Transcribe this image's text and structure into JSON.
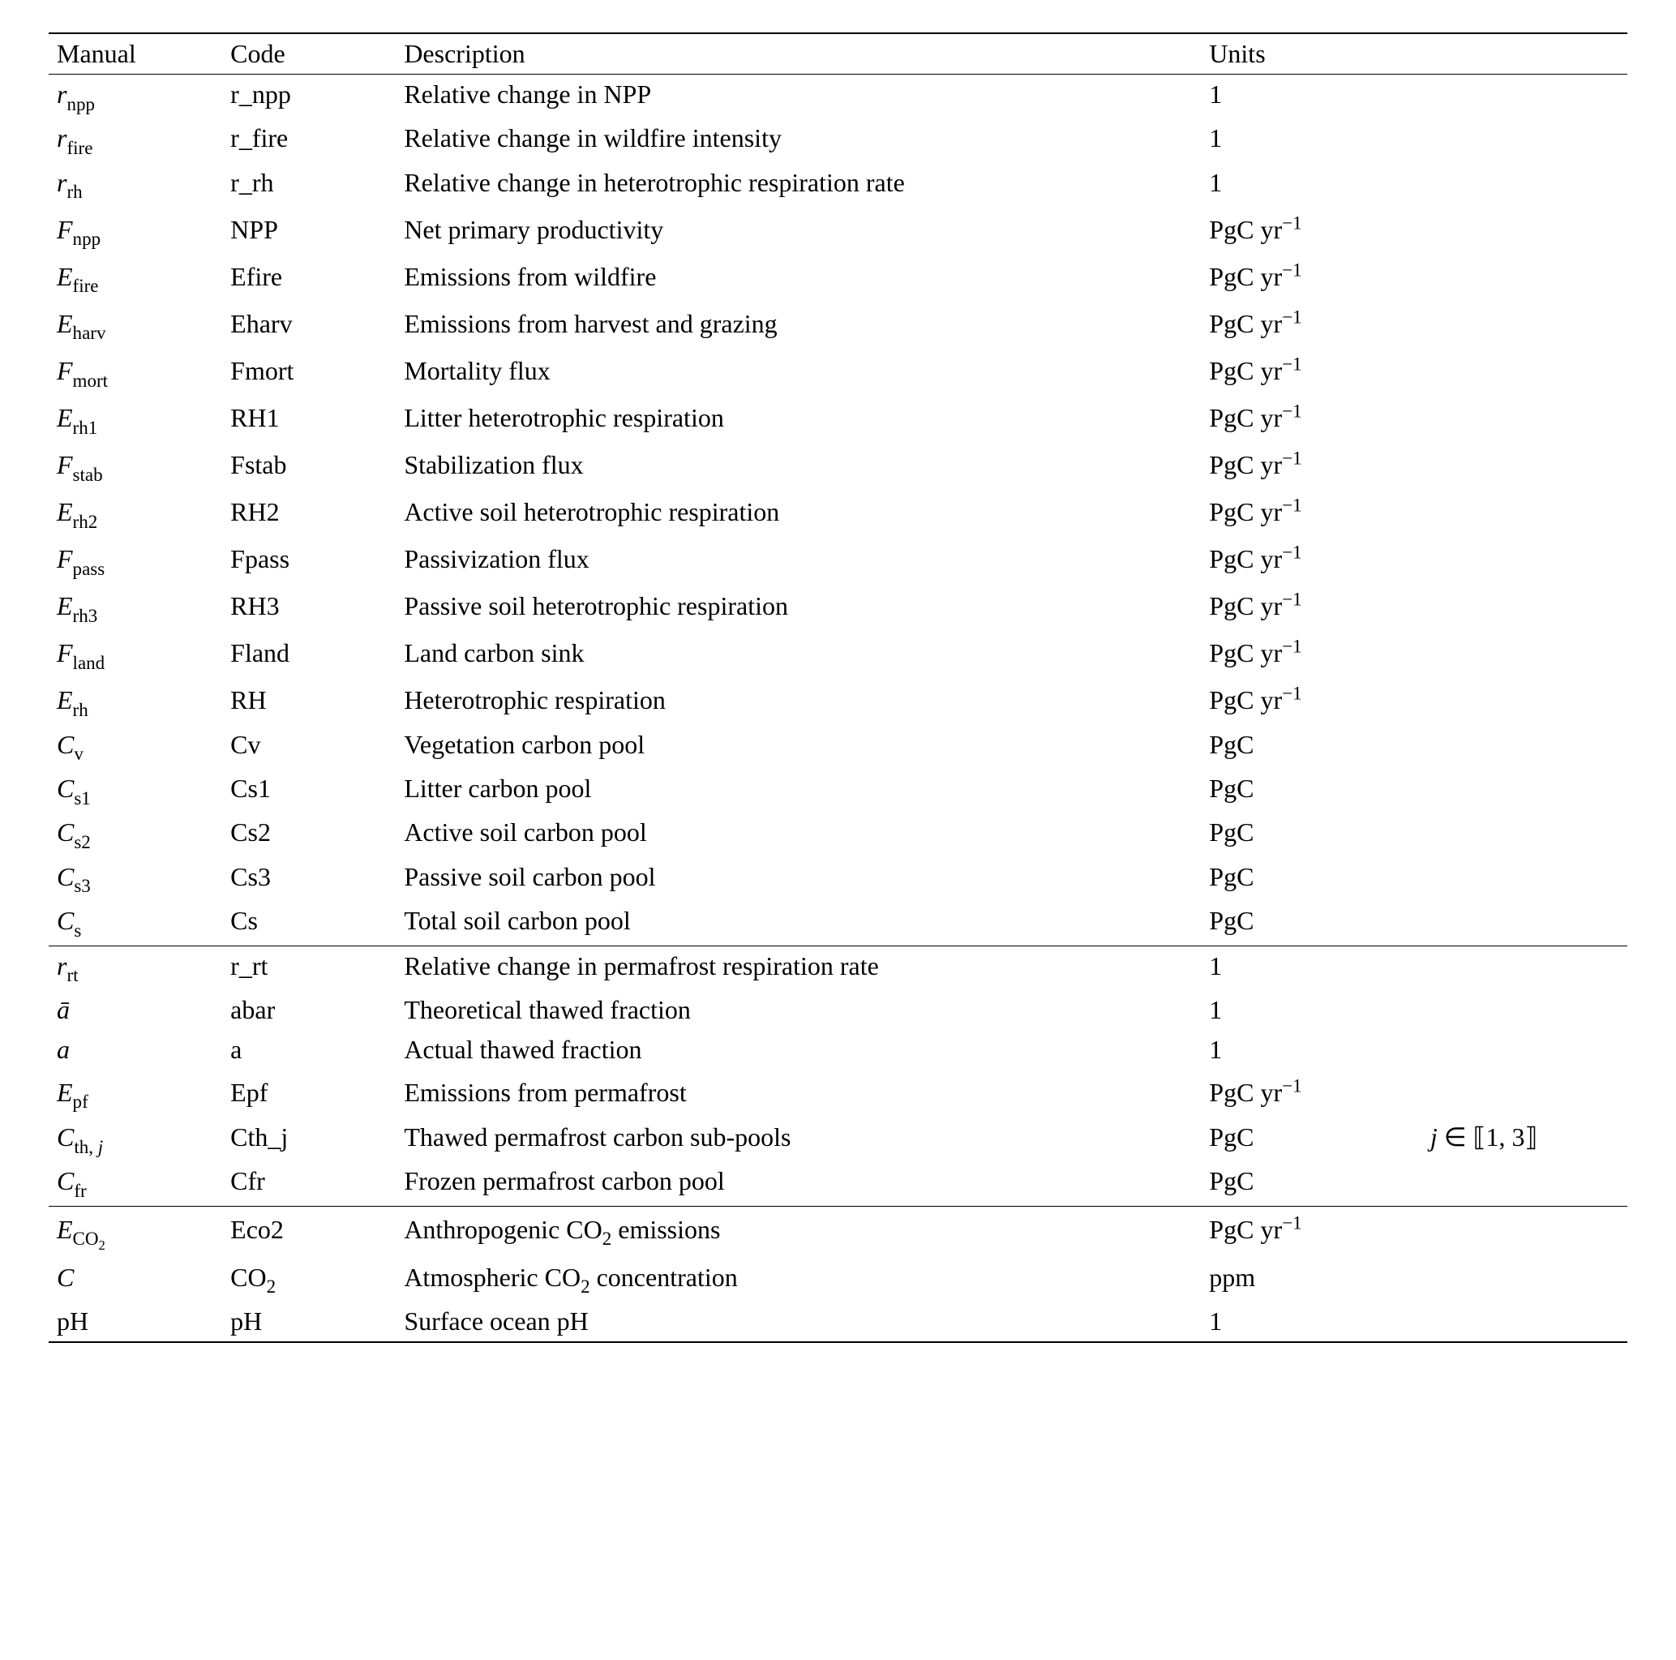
{
  "headers": {
    "manual": "Manual",
    "code": "Code",
    "description": "Description",
    "units": "Units"
  },
  "units_labels": {
    "one": "1",
    "pgc": "PgC",
    "pgcyr": "PgC yr",
    "pgcyr_exp": "−1",
    "ppm": "ppm"
  },
  "extra": {
    "j_range": "j ∈ ⟦1, 3⟧"
  },
  "sections": [
    {
      "rows": [
        {
          "m_base": "r",
          "m_sub": "npp",
          "m_italic": true,
          "code": "r_npp",
          "desc": "Relative change in NPP",
          "unit": "one"
        },
        {
          "m_base": "r",
          "m_sub": "fire",
          "m_italic": true,
          "code": "r_fire",
          "desc": "Relative change in wildfire intensity",
          "unit": "one"
        },
        {
          "m_base": "r",
          "m_sub": "rh",
          "m_italic": true,
          "code": "r_rh",
          "desc": "Relative change in heterotrophic respiration rate",
          "unit": "one"
        },
        {
          "m_base": "F",
          "m_sub": "npp",
          "m_italic": true,
          "code": "NPP",
          "desc": "Net primary productivity",
          "unit": "pgcyr"
        },
        {
          "m_base": "E",
          "m_sub": "fire",
          "m_italic": true,
          "code": "Efire",
          "desc": "Emissions from wildfire",
          "unit": "pgcyr"
        },
        {
          "m_base": "E",
          "m_sub": "harv",
          "m_italic": true,
          "code": "Eharv",
          "desc": "Emissions from harvest and grazing",
          "unit": "pgcyr"
        },
        {
          "m_base": "F",
          "m_sub": "mort",
          "m_italic": true,
          "code": "Fmort",
          "desc": "Mortality flux",
          "unit": "pgcyr"
        },
        {
          "m_base": "E",
          "m_sub": "rh1",
          "m_italic": true,
          "code": "RH1",
          "desc": "Litter heterotrophic respiration",
          "unit": "pgcyr"
        },
        {
          "m_base": "F",
          "m_sub": "stab",
          "m_italic": true,
          "code": "Fstab",
          "desc": "Stabilization flux",
          "unit": "pgcyr"
        },
        {
          "m_base": "E",
          "m_sub": "rh2",
          "m_italic": true,
          "code": "RH2",
          "desc": "Active soil heterotrophic respiration",
          "unit": "pgcyr"
        },
        {
          "m_base": "F",
          "m_sub": "pass",
          "m_italic": true,
          "code": "Fpass",
          "desc": "Passivization flux",
          "unit": "pgcyr"
        },
        {
          "m_base": "E",
          "m_sub": "rh3",
          "m_italic": true,
          "code": "RH3",
          "desc": "Passive soil heterotrophic respiration",
          "unit": "pgcyr"
        },
        {
          "m_base": "F",
          "m_sub": "land",
          "m_italic": true,
          "code": "Fland",
          "desc": "Land carbon sink",
          "unit": "pgcyr"
        },
        {
          "m_base": "E",
          "m_sub": "rh",
          "m_italic": true,
          "code": "RH",
          "desc": "Heterotrophic respiration",
          "unit": "pgcyr"
        },
        {
          "m_base": "C",
          "m_sub": "v",
          "m_italic": true,
          "code": "Cv",
          "desc": "Vegetation carbon pool",
          "unit": "pgc"
        },
        {
          "m_base": "C",
          "m_sub": "s1",
          "m_italic": true,
          "code": "Cs1",
          "desc": "Litter carbon pool",
          "unit": "pgc"
        },
        {
          "m_base": "C",
          "m_sub": "s2",
          "m_italic": true,
          "code": "Cs2",
          "desc": "Active soil carbon pool",
          "unit": "pgc"
        },
        {
          "m_base": "C",
          "m_sub": "s3",
          "m_italic": true,
          "code": "Cs3",
          "desc": "Passive soil carbon pool",
          "unit": "pgc"
        },
        {
          "m_base": "C",
          "m_sub": "s",
          "m_italic": true,
          "code": "Cs",
          "desc": "Total soil carbon pool",
          "unit": "pgc"
        }
      ]
    },
    {
      "rows": [
        {
          "m_base": "r",
          "m_sub": "rt",
          "m_italic": true,
          "code": "r_rt",
          "desc": "Relative change in permafrost respiration rate",
          "unit": "one"
        },
        {
          "m_base": "ā",
          "m_sub": "",
          "m_italic": true,
          "code": "abar",
          "desc": "Theoretical thawed fraction",
          "unit": "one"
        },
        {
          "m_base": "a",
          "m_sub": "",
          "m_italic": true,
          "code": "a",
          "desc": "Actual thawed fraction",
          "unit": "one"
        },
        {
          "m_base": "E",
          "m_sub": "pf",
          "m_italic": true,
          "code": "Epf",
          "desc": "Emissions from permafrost",
          "unit": "pgcyr"
        },
        {
          "m_base": "C",
          "m_sub": "th, j",
          "m_sub_italic_tail": true,
          "m_italic": true,
          "code": "Cth_j",
          "desc": "Thawed permafrost carbon sub-pools",
          "unit": "pgc",
          "extra": "j_range"
        },
        {
          "m_base": "C",
          "m_sub": "fr",
          "m_italic": true,
          "code": "Cfr",
          "desc": "Frozen permafrost carbon pool",
          "unit": "pgc"
        }
      ]
    },
    {
      "rows": [
        {
          "m_base": "E",
          "m_sub": "CO",
          "m_sub2": "2",
          "m_italic": true,
          "code": "Eco2",
          "desc_pre": "Anthropogenic CO",
          "desc_sub": "2",
          "desc_post": " emissions",
          "unit": "pgcyr"
        },
        {
          "m_base": "C",
          "m_sub": "",
          "m_italic": true,
          "code": "CO",
          "code_sub": "2",
          "desc_pre": "Atmospheric CO",
          "desc_sub": "2",
          "desc_post": " concentration",
          "unit": "ppm"
        },
        {
          "m_base": "pH",
          "m_sub": "",
          "m_italic": false,
          "code": "pH",
          "desc": "Surface ocean pH",
          "unit": "one"
        }
      ]
    }
  ]
}
